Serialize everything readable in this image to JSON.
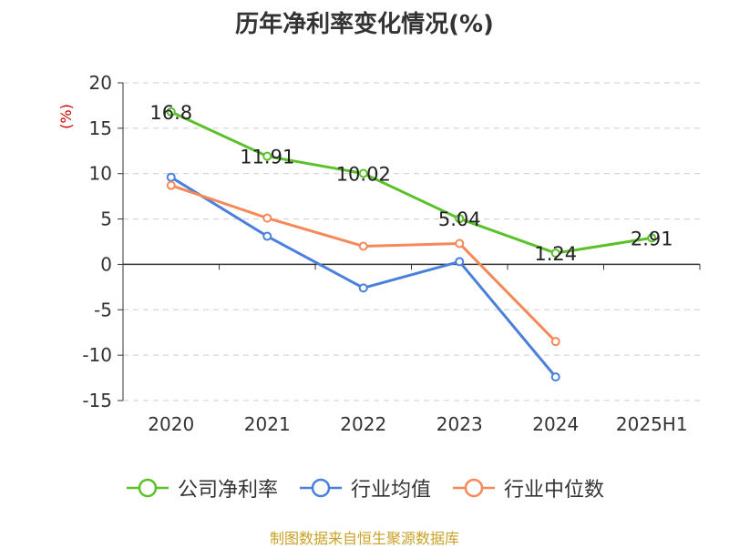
{
  "chart_data": {
    "type": "line",
    "title": "历年净利率变化情况(%)",
    "ylabel": "(%)",
    "xlabel": "",
    "categories": [
      "2020",
      "2021",
      "2022",
      "2023",
      "2024",
      "2025H1"
    ],
    "ylim": [
      -15,
      20
    ],
    "yticks": [
      20,
      15,
      10,
      5,
      0,
      -5,
      -10,
      -15
    ],
    "grid": true,
    "legend_position": "bottom",
    "series": [
      {
        "name": "公司净利率",
        "color": "#5bc12a",
        "values": [
          16.8,
          11.91,
          10.02,
          5.04,
          1.24,
          2.91
        ],
        "labels": [
          "16.8",
          "11.91",
          "10.02",
          "5.04",
          "1.24",
          "2.91"
        ]
      },
      {
        "name": "行业均值",
        "color": "#4a7fdc",
        "values": [
          9.6,
          3.1,
          -2.6,
          0.3,
          -12.4,
          null
        ]
      },
      {
        "name": "行业中位数",
        "color": "#f5895a",
        "values": [
          8.7,
          5.1,
          2.0,
          2.3,
          -8.5,
          null
        ]
      }
    ]
  },
  "source_note": "制图数据来自恒生聚源数据库"
}
